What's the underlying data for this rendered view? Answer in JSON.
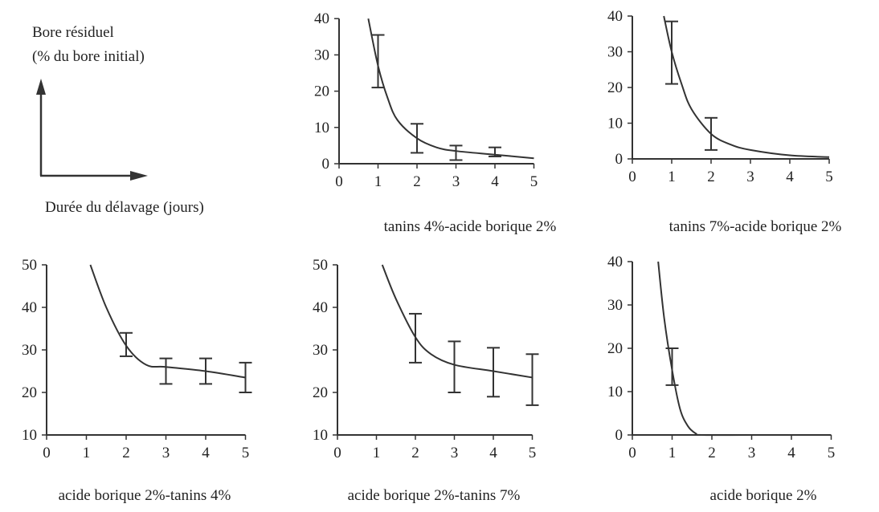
{
  "key_diagram": {
    "y_label_line1": "Bore résiduel",
    "y_label_line2": "(% du bore initial)",
    "x_label": "Durée du délavage (jours)"
  },
  "chart_data": [
    {
      "type": "line",
      "title": "tanins 4%-acide borique 2%",
      "xticks": [
        0,
        1,
        2,
        3,
        4,
        5
      ],
      "yticks": [
        0,
        10,
        20,
        30,
        40
      ],
      "xlim": [
        0,
        5
      ],
      "ylim": [
        0,
        40
      ],
      "curve": {
        "x": [
          0.75,
          1,
          1.25,
          1.5,
          2,
          2.5,
          3,
          4,
          5
        ],
        "y": [
          40,
          27,
          18,
          12,
          7,
          4.5,
          3.5,
          2.5,
          1.5
        ]
      },
      "error_bars": [
        {
          "x": 1,
          "low": 21,
          "high": 35.5
        },
        {
          "x": 2,
          "low": 3,
          "high": 11
        },
        {
          "x": 3,
          "low": 1,
          "high": 5
        },
        {
          "x": 4,
          "low": 2,
          "high": 4.5
        }
      ]
    },
    {
      "type": "line",
      "title": "tanins 7%-acide borique 2%",
      "xticks": [
        0,
        1,
        2,
        3,
        4,
        5
      ],
      "yticks": [
        0,
        10,
        20,
        30,
        40
      ],
      "xlim": [
        0,
        5
      ],
      "ylim": [
        0,
        40
      ],
      "curve": {
        "x": [
          0.8,
          1,
          1.25,
          1.5,
          2,
          2.5,
          3,
          4,
          5
        ],
        "y": [
          40,
          30,
          21,
          14,
          7,
          4,
          2.5,
          1,
          0.5
        ]
      },
      "error_bars": [
        {
          "x": 1,
          "low": 21,
          "high": 38.5
        },
        {
          "x": 2,
          "low": 2.5,
          "high": 11.5
        }
      ]
    },
    {
      "type": "line",
      "title": "acide borique 2%-tanins 4%",
      "xticks": [
        0,
        1,
        2,
        3,
        4,
        5
      ],
      "yticks": [
        10,
        20,
        30,
        40,
        50
      ],
      "xlim": [
        0,
        5
      ],
      "ylim": [
        10,
        50
      ],
      "curve": {
        "x": [
          1.1,
          1.5,
          2,
          2.5,
          3,
          4,
          5
        ],
        "y": [
          50,
          40,
          31,
          26.5,
          26,
          25,
          23.5
        ]
      },
      "error_bars": [
        {
          "x": 2,
          "low": 28.5,
          "high": 34
        },
        {
          "x": 3,
          "low": 22,
          "high": 28
        },
        {
          "x": 4,
          "low": 22,
          "high": 28
        },
        {
          "x": 5,
          "low": 20,
          "high": 27
        }
      ]
    },
    {
      "type": "line",
      "title": "acide borique 2%-tanins 7%",
      "xticks": [
        0,
        1,
        2,
        3,
        4,
        5
      ],
      "yticks": [
        10,
        20,
        30,
        40,
        50
      ],
      "xlim": [
        0,
        5
      ],
      "ylim": [
        10,
        50
      ],
      "curve": {
        "x": [
          1.15,
          1.5,
          2,
          2.4,
          3,
          4,
          5
        ],
        "y": [
          50,
          42,
          33,
          29,
          26.5,
          25,
          23.5
        ]
      },
      "error_bars": [
        {
          "x": 2,
          "low": 27,
          "high": 38.5
        },
        {
          "x": 3,
          "low": 20,
          "high": 32
        },
        {
          "x": 4,
          "low": 19,
          "high": 30.5
        },
        {
          "x": 5,
          "low": 17,
          "high": 29
        }
      ]
    },
    {
      "type": "line",
      "title": "acide borique 2%",
      "xticks": [
        0,
        1,
        2,
        3,
        4,
        5
      ],
      "yticks": [
        0,
        10,
        20,
        30,
        40
      ],
      "xlim": [
        0,
        5
      ],
      "ylim": [
        0,
        40
      ],
      "curve": {
        "x": [
          0.65,
          0.8,
          1,
          1.2,
          1.4,
          1.6,
          1.75,
          3,
          5
        ],
        "y": [
          40,
          27,
          15,
          6,
          2,
          0.3,
          0,
          0,
          0
        ]
      },
      "error_bars": [
        {
          "x": 1,
          "low": 11.5,
          "high": 20
        }
      ]
    },
    {
      "type": "line",
      "title": "",
      "xticks": [],
      "yticks": [],
      "xlim": [
        0,
        5
      ],
      "ylim": [
        0,
        40
      ],
      "curve": {
        "x": [],
        "y": []
      },
      "error_bars": []
    }
  ]
}
